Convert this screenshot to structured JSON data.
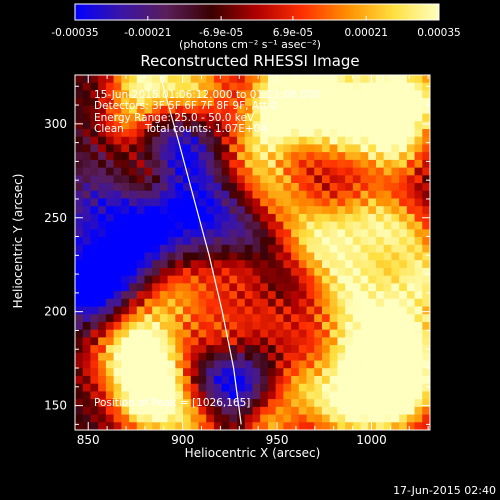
{
  "colorbar": {
    "ticks": [
      "-0.00035",
      "-0.00021",
      "-6.9e-05",
      "6.9e-05",
      "0.00021",
      "0.00035"
    ],
    "range": [
      -0.00035,
      0.00035
    ],
    "unit_label": "(photons cm⁻² s⁻¹ asec⁻²)",
    "colors": [
      "#0000ff",
      "#3a14a8",
      "#5a1e5a",
      "#3a0000",
      "#b00000",
      "#ff3000",
      "#ff9000",
      "#ffe040",
      "#ffffc0"
    ]
  },
  "chart_data": {
    "type": "heatmap",
    "title": "Reconstructed RHESSI Image",
    "xlabel": "Heliocentric X (arcsec)",
    "ylabel": "Heliocentric Y (arcsec)",
    "xlim": [
      843,
      1031
    ],
    "ylim": [
      137,
      326
    ],
    "xticks": [
      850,
      900,
      950,
      1000
    ],
    "yticks": [
      150,
      200,
      250,
      300
    ],
    "limb_curve": [
      [
        888,
        326
      ],
      [
        898,
        290
      ],
      [
        906,
        260
      ],
      [
        914,
        230
      ],
      [
        921,
        200
      ],
      [
        927,
        170
      ],
      [
        931,
        140
      ]
    ],
    "peak_position": [
      1026,
      165
    ],
    "annotations": {
      "time": "15-Jun-2015 01:06:12.000 to 01:11:08.000",
      "detectors": "Detectors: 3F 5F 6F 7F 8F 9F, Att 0",
      "energy": "Energy Range: 25.0 - 50.0 keV",
      "method": "Clean",
      "counts": "Total counts: 1.07E+04",
      "peak": "Position of Peak = [1026,165]"
    }
  },
  "footer": {
    "timestamp": "17-Jun-2015 02:40"
  }
}
